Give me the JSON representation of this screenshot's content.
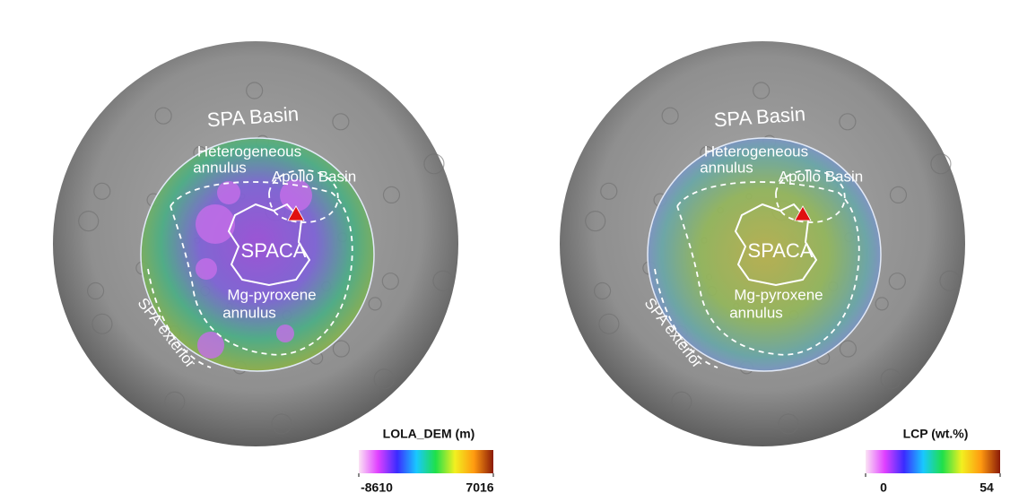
{
  "panels": [
    {
      "labels": [
        "SPA Basin",
        "Heterogeneous",
        "annulus",
        "Apollo Basin",
        "SPACA",
        "Mg-pyroxene",
        "annulus",
        "SPA exterior"
      ],
      "colorbar": {
        "title": "LOLA_DEM (m)",
        "lim": [
          -8610,
          7016
        ],
        "ticks": [
          -8610,
          7016
        ],
        "colors": [
          "#fbe3f4",
          "#e040ff",
          "#3a2cff",
          "#19c8ff",
          "#1fe04a",
          "#f2f020",
          "#ff9a10",
          "#8a1a08"
        ]
      }
    },
    {
      "labels": [
        "SPA Basin",
        "Heterogeneous",
        "annulus",
        "Apollo Basin",
        "SPACA",
        "Mg-pyroxene",
        "annulus",
        "SPA exterior"
      ],
      "colorbar": {
        "title": "LCP (wt.%)",
        "lim": [
          0,
          54
        ],
        "ticks": [
          0,
          54
        ],
        "colors": [
          "#fbe3f4",
          "#e040ff",
          "#3a2cff",
          "#19c8ff",
          "#1fe04a",
          "#f2f020",
          "#ff9a10",
          "#8a1a08"
        ]
      }
    }
  ]
}
